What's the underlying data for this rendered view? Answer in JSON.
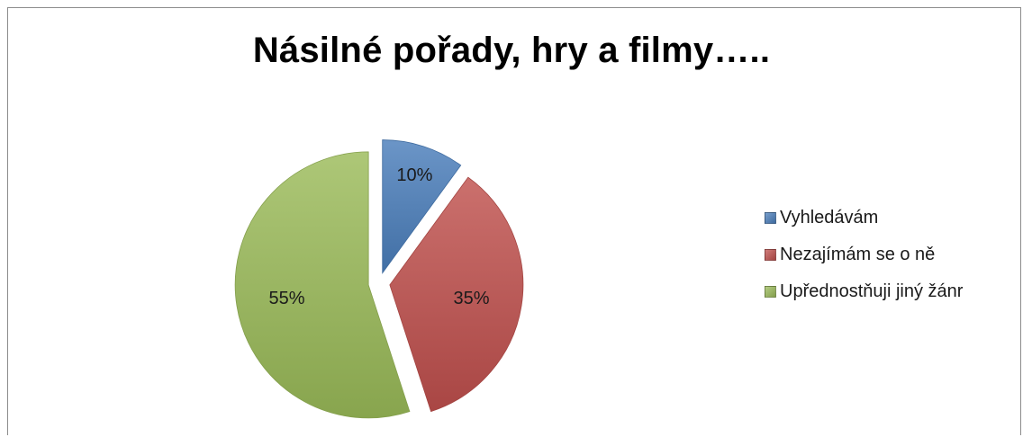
{
  "chart_data": {
    "type": "pie",
    "title": "Násilné pořady, hry a filmy…..",
    "categories": [
      "Vyhledávám",
      "Nezajímám se o ně",
      "Upřednostňuji jiný žánr"
    ],
    "values": [
      10,
      35,
      55
    ],
    "labels": [
      "10%",
      "35%",
      "55%"
    ],
    "colors": [
      "#4a7ebb",
      "#c0504d",
      "#9bbb59"
    ],
    "exploded": true,
    "legend_position": "right"
  }
}
